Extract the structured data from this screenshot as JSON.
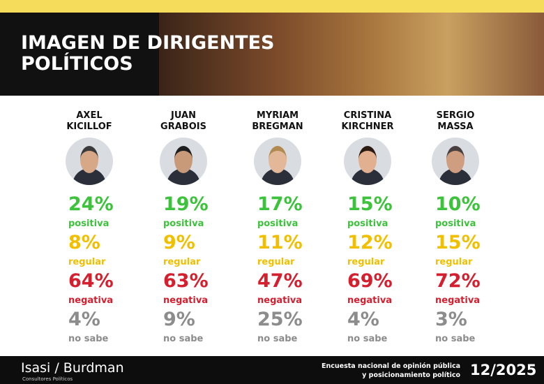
{
  "header": {
    "title": [
      "IMAGEN DE DIRIGENTES",
      "POLÍTICOS"
    ]
  },
  "candidates": [
    {
      "name": [
        "AXEL",
        "KICILLOF"
      ],
      "stats": [
        {
          "value": "24%",
          "label": "positiva"
        },
        {
          "value": "8%",
          "label": "regular"
        },
        {
          "value": "64%",
          "label": "negativa"
        },
        {
          "value": "4%",
          "label": "no sabe"
        }
      ]
    },
    {
      "name": [
        "JUAN",
        "GRABOIS"
      ],
      "stats": [
        {
          "value": "19%",
          "label": "positiva"
        },
        {
          "value": "9%",
          "label": "regular"
        },
        {
          "value": "63%",
          "label": "negativa"
        },
        {
          "value": "9%",
          "label": "no sabe"
        }
      ]
    },
    {
      "name": [
        "MYRIAM",
        "BREGMAN"
      ],
      "stats": [
        {
          "value": "17%",
          "label": "positiva"
        },
        {
          "value": "11%",
          "label": "regular"
        },
        {
          "value": "47%",
          "label": "negativa"
        },
        {
          "value": "25%",
          "label": "no sabe"
        }
      ]
    },
    {
      "name": [
        "CRISTINA",
        "KIRCHNER"
      ],
      "stats": [
        {
          "value": "15%",
          "label": "positiva"
        },
        {
          "value": "12%",
          "label": "regular"
        },
        {
          "value": "69%",
          "label": "negativa"
        },
        {
          "value": "4%",
          "label": "no sabe"
        }
      ]
    },
    {
      "name": [
        "SERGIO",
        "MASSA"
      ],
      "stats": [
        {
          "value": "10%",
          "label": "positiva"
        },
        {
          "value": "15%",
          "label": "regular"
        },
        {
          "value": "72%",
          "label": "negativa"
        },
        {
          "value": "3%",
          "label": "no sabe"
        }
      ]
    }
  ],
  "footer": {
    "brand": "Isasi / Burdman",
    "brand_subtitle": "Consultores Políticos",
    "survey": [
      "Encuesta nacional de opinión pública",
      "y posicionamiento político"
    ],
    "date": "12/2025"
  }
}
